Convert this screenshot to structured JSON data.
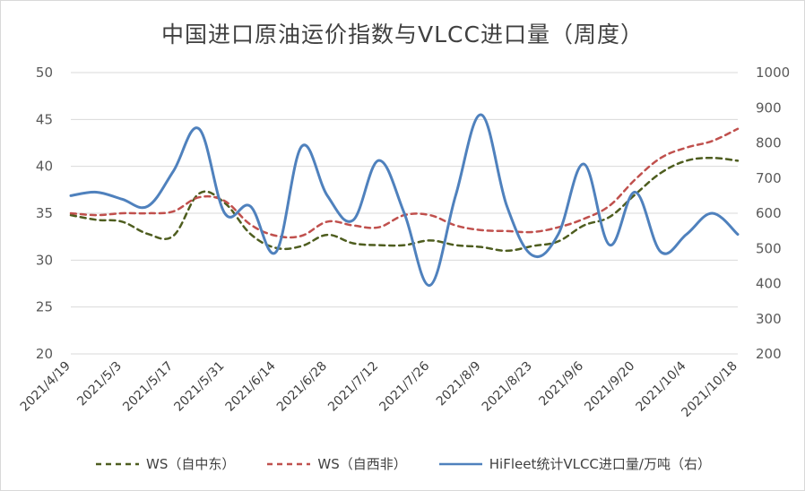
{
  "chart_data": {
    "type": "line",
    "title": "中国进口原油运价指数与VLCC进口量（周度）",
    "categories": [
      "2021/4/19",
      "2021/4/26",
      "2021/5/3",
      "2021/5/10",
      "2021/5/17",
      "2021/5/24",
      "2021/5/31",
      "2021/6/7",
      "2021/6/14",
      "2021/6/21",
      "2021/6/28",
      "2021/7/5",
      "2021/7/12",
      "2021/7/19",
      "2021/7/26",
      "2021/8/2",
      "2021/8/9",
      "2021/8/16",
      "2021/8/23",
      "2021/8/30",
      "2021/9/6",
      "2021/9/13",
      "2021/9/20",
      "2021/9/27",
      "2021/10/4",
      "2021/10/11",
      "2021/10/18"
    ],
    "x_tick_labels": [
      "2021/4/19",
      "2021/5/3",
      "2021/5/17",
      "2021/5/31",
      "2021/6/14",
      "2021/6/28",
      "2021/7/12",
      "2021/7/26",
      "2021/8/9",
      "2021/8/23",
      "2021/9/6",
      "2021/9/20",
      "2021/10/4",
      "2021/10/18"
    ],
    "y_left": {
      "min": 20,
      "max": 50,
      "step": 5,
      "tick_labels": [
        "20",
        "25",
        "30",
        "35",
        "40",
        "45",
        "50"
      ]
    },
    "y_right": {
      "min": 200,
      "max": 1000,
      "step": 100,
      "tick_labels": [
        "200",
        "300",
        "400",
        "500",
        "600",
        "700",
        "800",
        "900",
        "1000"
      ]
    },
    "grid": true,
    "legend_position": "bottom",
    "series": [
      {
        "name": "WS（自中东）",
        "axis": "left",
        "style": "dashed",
        "color": "#4e5d1f",
        "values": [
          34.8,
          34.3,
          34.1,
          32.8,
          32.6,
          37.1,
          36.1,
          32.8,
          31.3,
          31.5,
          32.7,
          31.8,
          31.6,
          31.6,
          32.1,
          31.6,
          31.4,
          31.0,
          31.5,
          32.0,
          33.7,
          34.6,
          37.0,
          39.3,
          40.6,
          40.9,
          40.6
        ]
      },
      {
        "name": "WS（自西非）",
        "axis": "left",
        "style": "dashed",
        "color": "#c0504d",
        "values": [
          35.0,
          34.8,
          35.0,
          35.0,
          35.2,
          36.7,
          36.3,
          33.8,
          32.6,
          32.6,
          34.1,
          33.7,
          33.5,
          34.8,
          34.8,
          33.7,
          33.2,
          33.1,
          33.0,
          33.5,
          34.4,
          35.8,
          38.6,
          40.9,
          42.0,
          42.7,
          44.0
        ]
      },
      {
        "name": "HiFleet统计VLCC进口量/万吨（右）",
        "axis": "right",
        "style": "solid",
        "color": "#4f81bd",
        "values": [
          650,
          660,
          640,
          620,
          720,
          840,
          600,
          620,
          490,
          790,
          650,
          580,
          750,
          600,
          395,
          650,
          880,
          620,
          480,
          540,
          740,
          510,
          660,
          490,
          540,
          600,
          540
        ]
      }
    ]
  }
}
